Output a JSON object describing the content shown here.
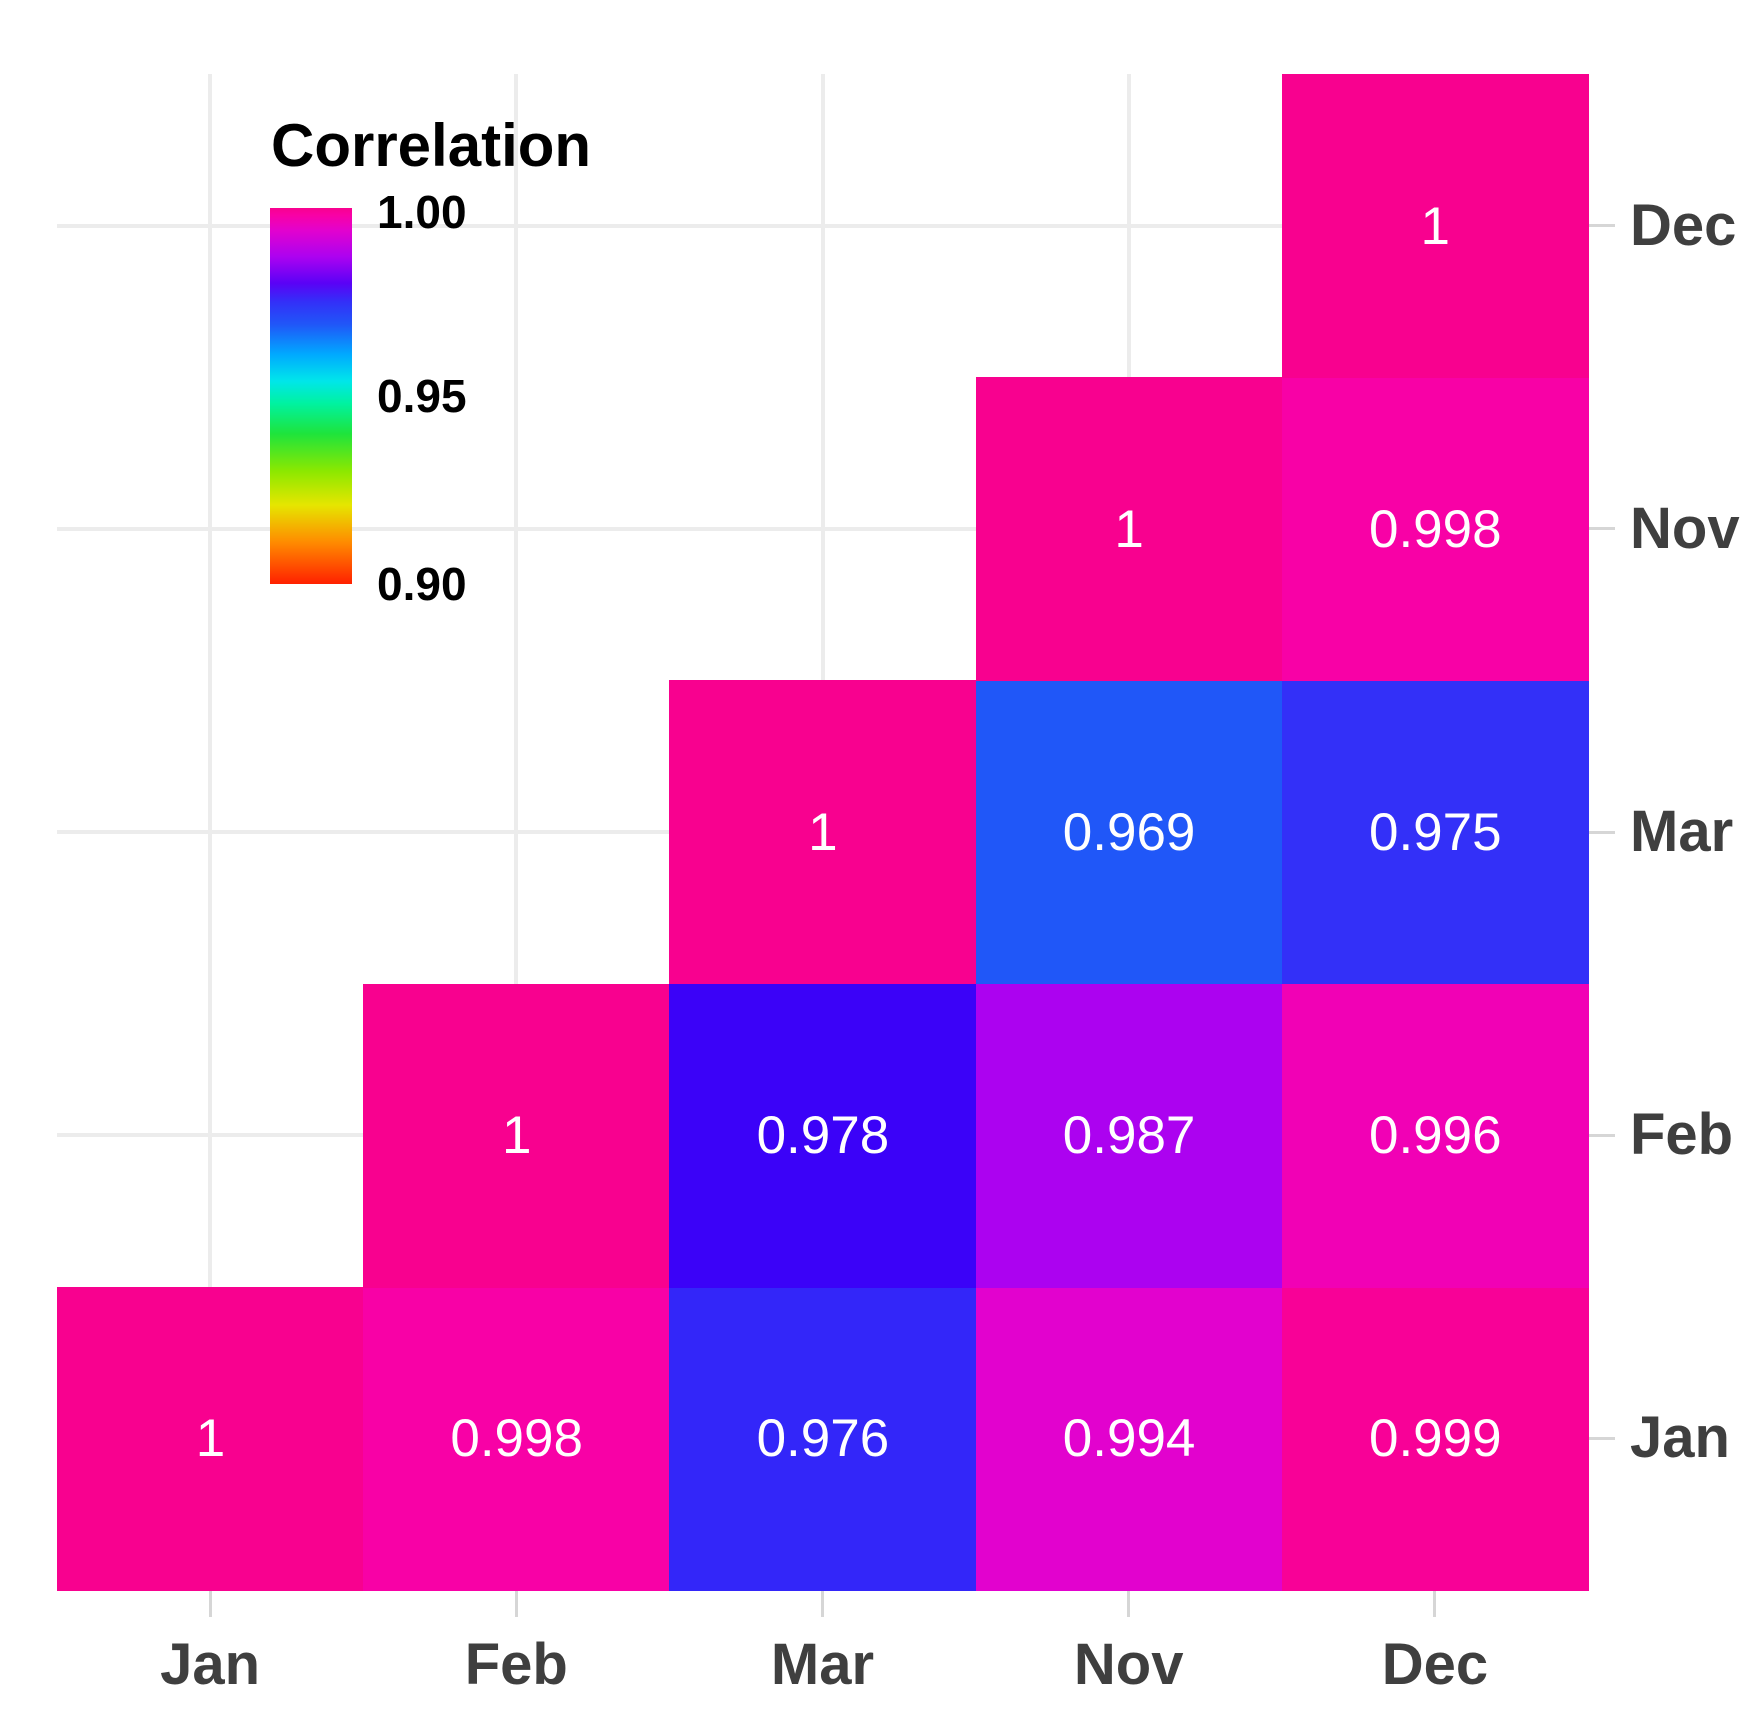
{
  "colors": {
    "background": "#ffffff",
    "gridline": "#ececec",
    "tick": "#d6d6d6",
    "axis_label": "#3f3f3f",
    "cell_text": "#ffffff",
    "legend_text": "#000000"
  },
  "chart_data": {
    "type": "heatmap",
    "title": "",
    "x_categories": [
      "Jan",
      "Feb",
      "Mar",
      "Nov",
      "Dec"
    ],
    "y_categories_top_to_bottom": [
      "Dec",
      "Nov",
      "Mar",
      "Feb",
      "Jan"
    ],
    "value_range": [
      0.9,
      1.0
    ],
    "grid": true,
    "legend": {
      "title": "Correlation",
      "position": "upper-left-inside",
      "ticks": [
        {
          "label": "1.00",
          "value": 1.0
        },
        {
          "label": "0.95",
          "value": 0.95
        },
        {
          "label": "0.90",
          "value": 0.9
        }
      ],
      "gradient_stops": [
        {
          "pos": 0.0,
          "color": "#f8018f"
        },
        {
          "pos": 0.02,
          "color": "#f801a6"
        },
        {
          "pos": 0.06,
          "color": "#e202ce"
        },
        {
          "pos": 0.13,
          "color": "#ac02f0"
        },
        {
          "pos": 0.2,
          "color": "#5a02f6"
        },
        {
          "pos": 0.25,
          "color": "#3330f8"
        },
        {
          "pos": 0.31,
          "color": "#2057f8"
        },
        {
          "pos": 0.39,
          "color": "#00aaff"
        },
        {
          "pos": 0.46,
          "color": "#00e6ea"
        },
        {
          "pos": 0.52,
          "color": "#00f2a0"
        },
        {
          "pos": 0.6,
          "color": "#1ee43c"
        },
        {
          "pos": 0.7,
          "color": "#8ce800"
        },
        {
          "pos": 0.79,
          "color": "#e6e600"
        },
        {
          "pos": 0.89,
          "color": "#ff8a00"
        },
        {
          "pos": 1.0,
          "color": "#ff2000"
        }
      ]
    },
    "cells": [
      {
        "x": "Jan",
        "y": "Jan",
        "value": 1,
        "label": "1",
        "color": "#f8018f"
      },
      {
        "x": "Feb",
        "y": "Jan",
        "value": 0.998,
        "label": "0.998",
        "color": "#f801a6"
      },
      {
        "x": "Mar",
        "y": "Jan",
        "value": 0.976,
        "label": "0.976",
        "color": "#3326f9"
      },
      {
        "x": "Nov",
        "y": "Jan",
        "value": 0.994,
        "label": "0.994",
        "color": "#e202ce"
      },
      {
        "x": "Dec",
        "y": "Jan",
        "value": 0.999,
        "label": "0.999",
        "color": "#f80197"
      },
      {
        "x": "Feb",
        "y": "Feb",
        "value": 1,
        "label": "1",
        "color": "#f8018f"
      },
      {
        "x": "Mar",
        "y": "Feb",
        "value": 0.978,
        "label": "0.978",
        "color": "#3b02f8"
      },
      {
        "x": "Nov",
        "y": "Feb",
        "value": 0.987,
        "label": "0.987",
        "color": "#ac02f0"
      },
      {
        "x": "Dec",
        "y": "Feb",
        "value": 0.996,
        "label": "0.996",
        "color": "#f101b5"
      },
      {
        "x": "Mar",
        "y": "Mar",
        "value": 1,
        "label": "1",
        "color": "#f8018f"
      },
      {
        "x": "Nov",
        "y": "Mar",
        "value": 0.969,
        "label": "0.969",
        "color": "#2057f8"
      },
      {
        "x": "Dec",
        "y": "Mar",
        "value": 0.975,
        "label": "0.975",
        "color": "#3330f8"
      },
      {
        "x": "Nov",
        "y": "Nov",
        "value": 1,
        "label": "1",
        "color": "#f8018f"
      },
      {
        "x": "Dec",
        "y": "Nov",
        "value": 0.998,
        "label": "0.998",
        "color": "#f801a6"
      },
      {
        "x": "Dec",
        "y": "Dec",
        "value": 1,
        "label": "1",
        "color": "#f8018f"
      }
    ]
  }
}
